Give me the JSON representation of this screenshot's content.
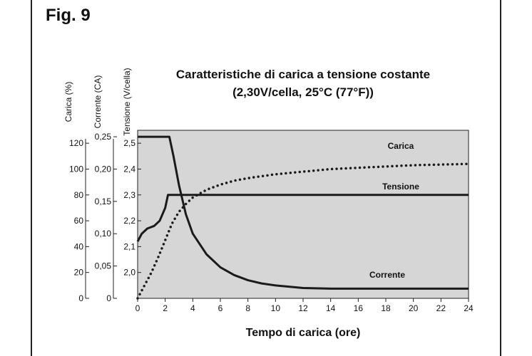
{
  "figure_label": "Fig. 9",
  "colors": {
    "plot_background": "#d6d6d6",
    "line": "#1a1a1a",
    "frame": "#222222"
  },
  "chart_data": {
    "type": "line",
    "title": "Caratteristiche di carica a tensione costante",
    "subtitle": "(2,30V/cella, 25°C (77°F))",
    "xlabel": "Tempo di carica (ore)",
    "xlim": [
      0,
      24
    ],
    "x_ticks": [
      "0",
      "2",
      "4",
      "6",
      "8",
      "10",
      "12",
      "14",
      "16",
      "18",
      "20",
      "22",
      "24"
    ],
    "grid": false,
    "axes": [
      {
        "label": "Carica (%)",
        "range": [
          0,
          130
        ],
        "ticks": [
          "0",
          "20",
          "40",
          "60",
          "80",
          "100",
          "120"
        ]
      },
      {
        "label": "Corrente (CA)",
        "range": [
          0,
          0.26
        ],
        "ticks": [
          "0",
          "0,05",
          "0,10",
          "0,15",
          "0,20",
          "0,25"
        ]
      },
      {
        "label": "Tensione (V/cella)",
        "range": [
          1.9,
          2.55
        ],
        "ticks": [
          "2,0",
          "2,1",
          "2,2",
          "2,3",
          "2,4",
          "2,5"
        ]
      }
    ],
    "series": [
      {
        "name": "Carica",
        "axis": "Carica (%)",
        "style": "dotted",
        "x": [
          0,
          0.5,
          1,
          1.5,
          2,
          2.5,
          3,
          3.5,
          4,
          5,
          6,
          7,
          8,
          10,
          12,
          14,
          16,
          18,
          20,
          22,
          24
        ],
        "y": [
          0,
          10,
          20,
          32,
          45,
          58,
          67,
          73,
          78,
          84,
          88,
          91,
          93,
          96,
          98,
          100,
          101,
          102,
          103,
          103.5,
          104
        ]
      },
      {
        "name": "Tensione",
        "axis": "Tensione (V/cella)",
        "style": "solid",
        "x": [
          0,
          0.3,
          0.7,
          1.2,
          1.6,
          2,
          2.2,
          8,
          16,
          24
        ],
        "y": [
          2.12,
          2.15,
          2.17,
          2.18,
          2.2,
          2.25,
          2.3,
          2.3,
          2.3,
          2.3
        ]
      },
      {
        "name": "Corrente",
        "axis": "Corrente (CA)",
        "style": "solid",
        "x": [
          0,
          1,
          2,
          2.3,
          2.6,
          3,
          3.5,
          4,
          5,
          6,
          7,
          8,
          9,
          10,
          12,
          14,
          18,
          24
        ],
        "y": [
          0.25,
          0.25,
          0.25,
          0.25,
          0.22,
          0.175,
          0.13,
          0.1,
          0.068,
          0.048,
          0.036,
          0.028,
          0.023,
          0.02,
          0.016,
          0.015,
          0.015,
          0.015
        ]
      }
    ],
    "annotations": [
      "Carica",
      "Tensione",
      "Corrente"
    ]
  }
}
